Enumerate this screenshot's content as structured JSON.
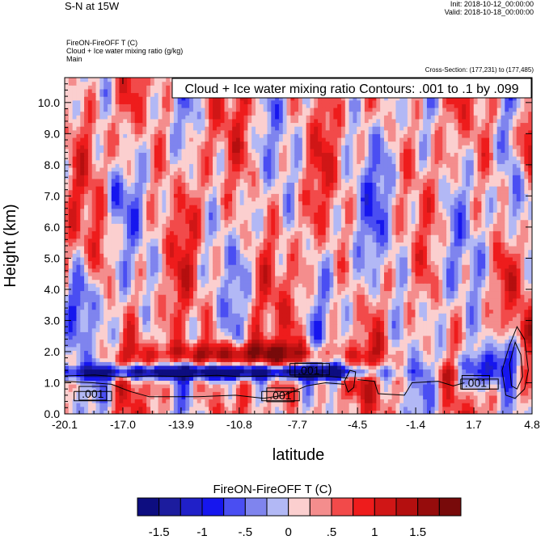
{
  "header": {
    "title": "S-N at 15W",
    "init": "Init: 2018-10-12_00:00:00",
    "valid": "Valid: 2018-10-18_00:00:00",
    "var_line1": "FireON-FireOFF T   (C)",
    "var_line2": "Cloud + Ice water mixing ratio   (g/kg)",
    "var_line3": "Main",
    "cross_section": "Cross-Section: (177,231) to (177,485)"
  },
  "chart_data": {
    "type": "heatmap",
    "title": "Cloud + Ice water mixing ratio Contours: .001 to .1 by .099",
    "xlabel": "latitude",
    "ylabel": "Height (km)",
    "xlim": [
      -20.1,
      4.8
    ],
    "ylim": [
      0.0,
      10.8
    ],
    "x_ticks": [
      "-20.1",
      "-17.0",
      "-13.9",
      "-10.8",
      "-7.7",
      "-4.5",
      "-1.4",
      "1.7",
      "4.8"
    ],
    "y_ticks": [
      "0.0",
      "1.0",
      "2.0",
      "3.0",
      "4.0",
      "5.0",
      "6.0",
      "7.0",
      "8.0",
      "9.0",
      "10.0"
    ],
    "contour_labels": [
      {
        "text": ".001",
        "x": -18.6,
        "y": 0.65
      },
      {
        "text": ".001",
        "x": -8.6,
        "y": 0.6
      },
      {
        "text": ".001",
        "x": -7.1,
        "y": 1.4
      },
      {
        "text": ".001",
        "x": 1.8,
        "y": 1.0
      }
    ],
    "colorbar": {
      "title": "FireON-FireOFF T  (C)",
      "colors": [
        "#0d0d80",
        "#1c1c9e",
        "#2020c8",
        "#1616ee",
        "#4a4ef2",
        "#7f84ee",
        "#b2b8f5",
        "#fbcfcf",
        "#f48d8d",
        "#f24a4a",
        "#ee1c1c",
        "#d01616",
        "#b40f0f",
        "#960c0c",
        "#780a0a"
      ],
      "tick_labels": [
        "-1.5",
        "-1",
        "-.5",
        "0",
        ".5",
        "1",
        "1.5"
      ]
    }
  }
}
